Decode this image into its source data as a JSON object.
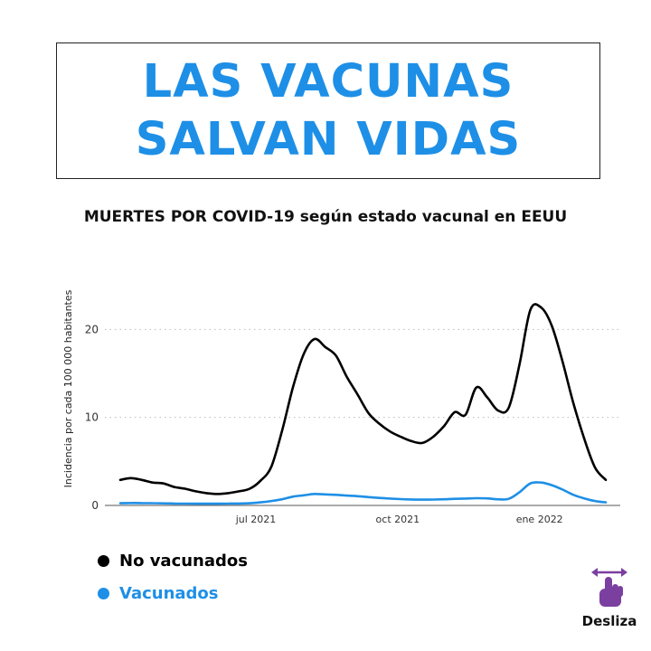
{
  "headline": {
    "line1": "LAS VACUNAS",
    "line2": "SALVAN VIDAS",
    "color": "#1e8fe6"
  },
  "swipe": {
    "label": "Desliza",
    "icon": "swipe-hand-icon",
    "icon_color": "#7b3fa0"
  },
  "chart_data": {
    "type": "line",
    "title": "MUERTES POR COVID-19 según estado vacunal en EEUU",
    "ylabel": "Incidencia por cada 100 000 habitantes",
    "xlabel": "",
    "ylim": [
      0,
      22.5
    ],
    "yticks": [
      0,
      10,
      20
    ],
    "grid": true,
    "legend_position": "bottom-left",
    "x_dates": [
      "2021-04-04",
      "2021-04-11",
      "2021-04-18",
      "2021-04-25",
      "2021-05-02",
      "2021-05-09",
      "2021-05-16",
      "2021-05-23",
      "2021-05-30",
      "2021-06-06",
      "2021-06-13",
      "2021-06-20",
      "2021-06-27",
      "2021-07-04",
      "2021-07-11",
      "2021-07-18",
      "2021-07-25",
      "2021-08-01",
      "2021-08-08",
      "2021-08-15",
      "2021-08-22",
      "2021-08-29",
      "2021-09-05",
      "2021-09-12",
      "2021-09-19",
      "2021-09-26",
      "2021-10-03",
      "2021-10-10",
      "2021-10-17",
      "2021-10-24",
      "2021-10-31",
      "2021-11-07",
      "2021-11-14",
      "2021-11-21",
      "2021-11-28",
      "2021-12-05",
      "2021-12-12",
      "2021-12-19",
      "2021-12-26",
      "2022-01-02",
      "2022-01-09",
      "2022-01-16",
      "2022-01-23",
      "2022-01-30",
      "2022-02-06",
      "2022-02-13"
    ],
    "xticks": [
      {
        "date": "2021-07-01",
        "label": "jul 2021"
      },
      {
        "date": "2021-10-01",
        "label": "oct 2021"
      },
      {
        "date": "2022-01-01",
        "label": "ene 2022"
      }
    ],
    "series": [
      {
        "name": "No vacunados",
        "color": "#000000",
        "values": [
          2.9,
          3.1,
          2.9,
          2.6,
          2.5,
          2.1,
          1.9,
          1.6,
          1.4,
          1.3,
          1.4,
          1.6,
          1.9,
          2.8,
          4.4,
          8.5,
          13.4,
          17.2,
          18.9,
          18.0,
          17.0,
          14.6,
          12.6,
          10.5,
          9.3,
          8.4,
          7.8,
          7.3,
          7.1,
          7.8,
          9.0,
          10.6,
          10.3,
          13.4,
          12.3,
          10.8,
          11.1,
          16.0,
          22.2,
          22.5,
          20.4,
          16.3,
          11.6,
          7.6,
          4.3,
          2.9
        ]
      },
      {
        "name": "Vacunados",
        "color": "#1e8fe6",
        "values": [
          0.25,
          0.28,
          0.27,
          0.26,
          0.24,
          0.22,
          0.21,
          0.2,
          0.2,
          0.2,
          0.21,
          0.22,
          0.25,
          0.35,
          0.5,
          0.7,
          1.0,
          1.15,
          1.3,
          1.25,
          1.2,
          1.12,
          1.05,
          0.95,
          0.85,
          0.78,
          0.72,
          0.68,
          0.66,
          0.67,
          0.7,
          0.75,
          0.78,
          0.82,
          0.8,
          0.7,
          0.75,
          1.5,
          2.5,
          2.6,
          2.3,
          1.8,
          1.2,
          0.8,
          0.5,
          0.35
        ]
      }
    ]
  }
}
